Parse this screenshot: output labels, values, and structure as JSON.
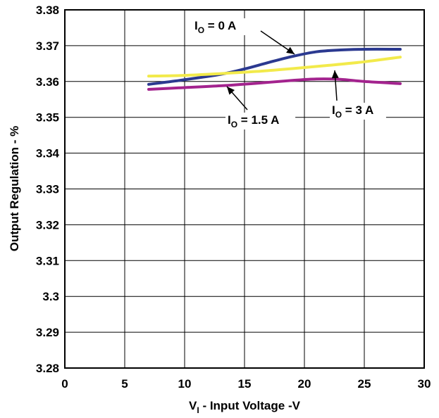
{
  "chart_data": {
    "type": "line",
    "title": "",
    "xlabel": {
      "main": "V",
      "sub": "I",
      "rest": " - Input Voltage -V"
    },
    "ylabel": "Output Regulation - %",
    "xlim": [
      0,
      30
    ],
    "ylim": [
      3.28,
      3.38
    ],
    "xticks": [
      "0",
      "5",
      "10",
      "15",
      "20",
      "25",
      "30"
    ],
    "yticks": [
      "3.28",
      "3.29",
      "3.3",
      "3.31",
      "3.32",
      "3.33",
      "3.34",
      "3.35",
      "3.36",
      "3.37",
      "3.38"
    ],
    "grid": true,
    "legend": "none",
    "series": [
      {
        "name": "IO = 0 A",
        "color": "#2b3990",
        "x": [
          7,
          10,
          13,
          15,
          17,
          19,
          21,
          23,
          25,
          28
        ],
        "y": [
          3.3592,
          3.3605,
          3.362,
          3.3635,
          3.3653,
          3.367,
          3.3683,
          3.3688,
          3.369,
          3.369
        ]
      },
      {
        "name": "IO = 3 A",
        "color": "#f2ea4b",
        "x": [
          7,
          10,
          13,
          16,
          19,
          22,
          25,
          28
        ],
        "y": [
          3.3615,
          3.3617,
          3.3622,
          3.3628,
          3.3636,
          3.3645,
          3.3655,
          3.3668
        ]
      },
      {
        "name": "IO = 1.5 A",
        "color": "#a3238e",
        "x": [
          7,
          10,
          13,
          16,
          19,
          21,
          23,
          25,
          28
        ],
        "y": [
          3.3578,
          3.3583,
          3.3588,
          3.3595,
          3.3603,
          3.3607,
          3.3606,
          3.36,
          3.3594
        ]
      }
    ],
    "annotations": [
      {
        "main": "I",
        "sub": "O",
        "rest": " = 0 A",
        "series": "IO = 0 A"
      },
      {
        "main": "I",
        "sub": "O",
        "rest": " = 3 A",
        "series": "IO = 3 A"
      },
      {
        "main": "I",
        "sub": "O",
        "rest": " = 1.5 A",
        "series": "IO = 1.5 A"
      }
    ]
  }
}
